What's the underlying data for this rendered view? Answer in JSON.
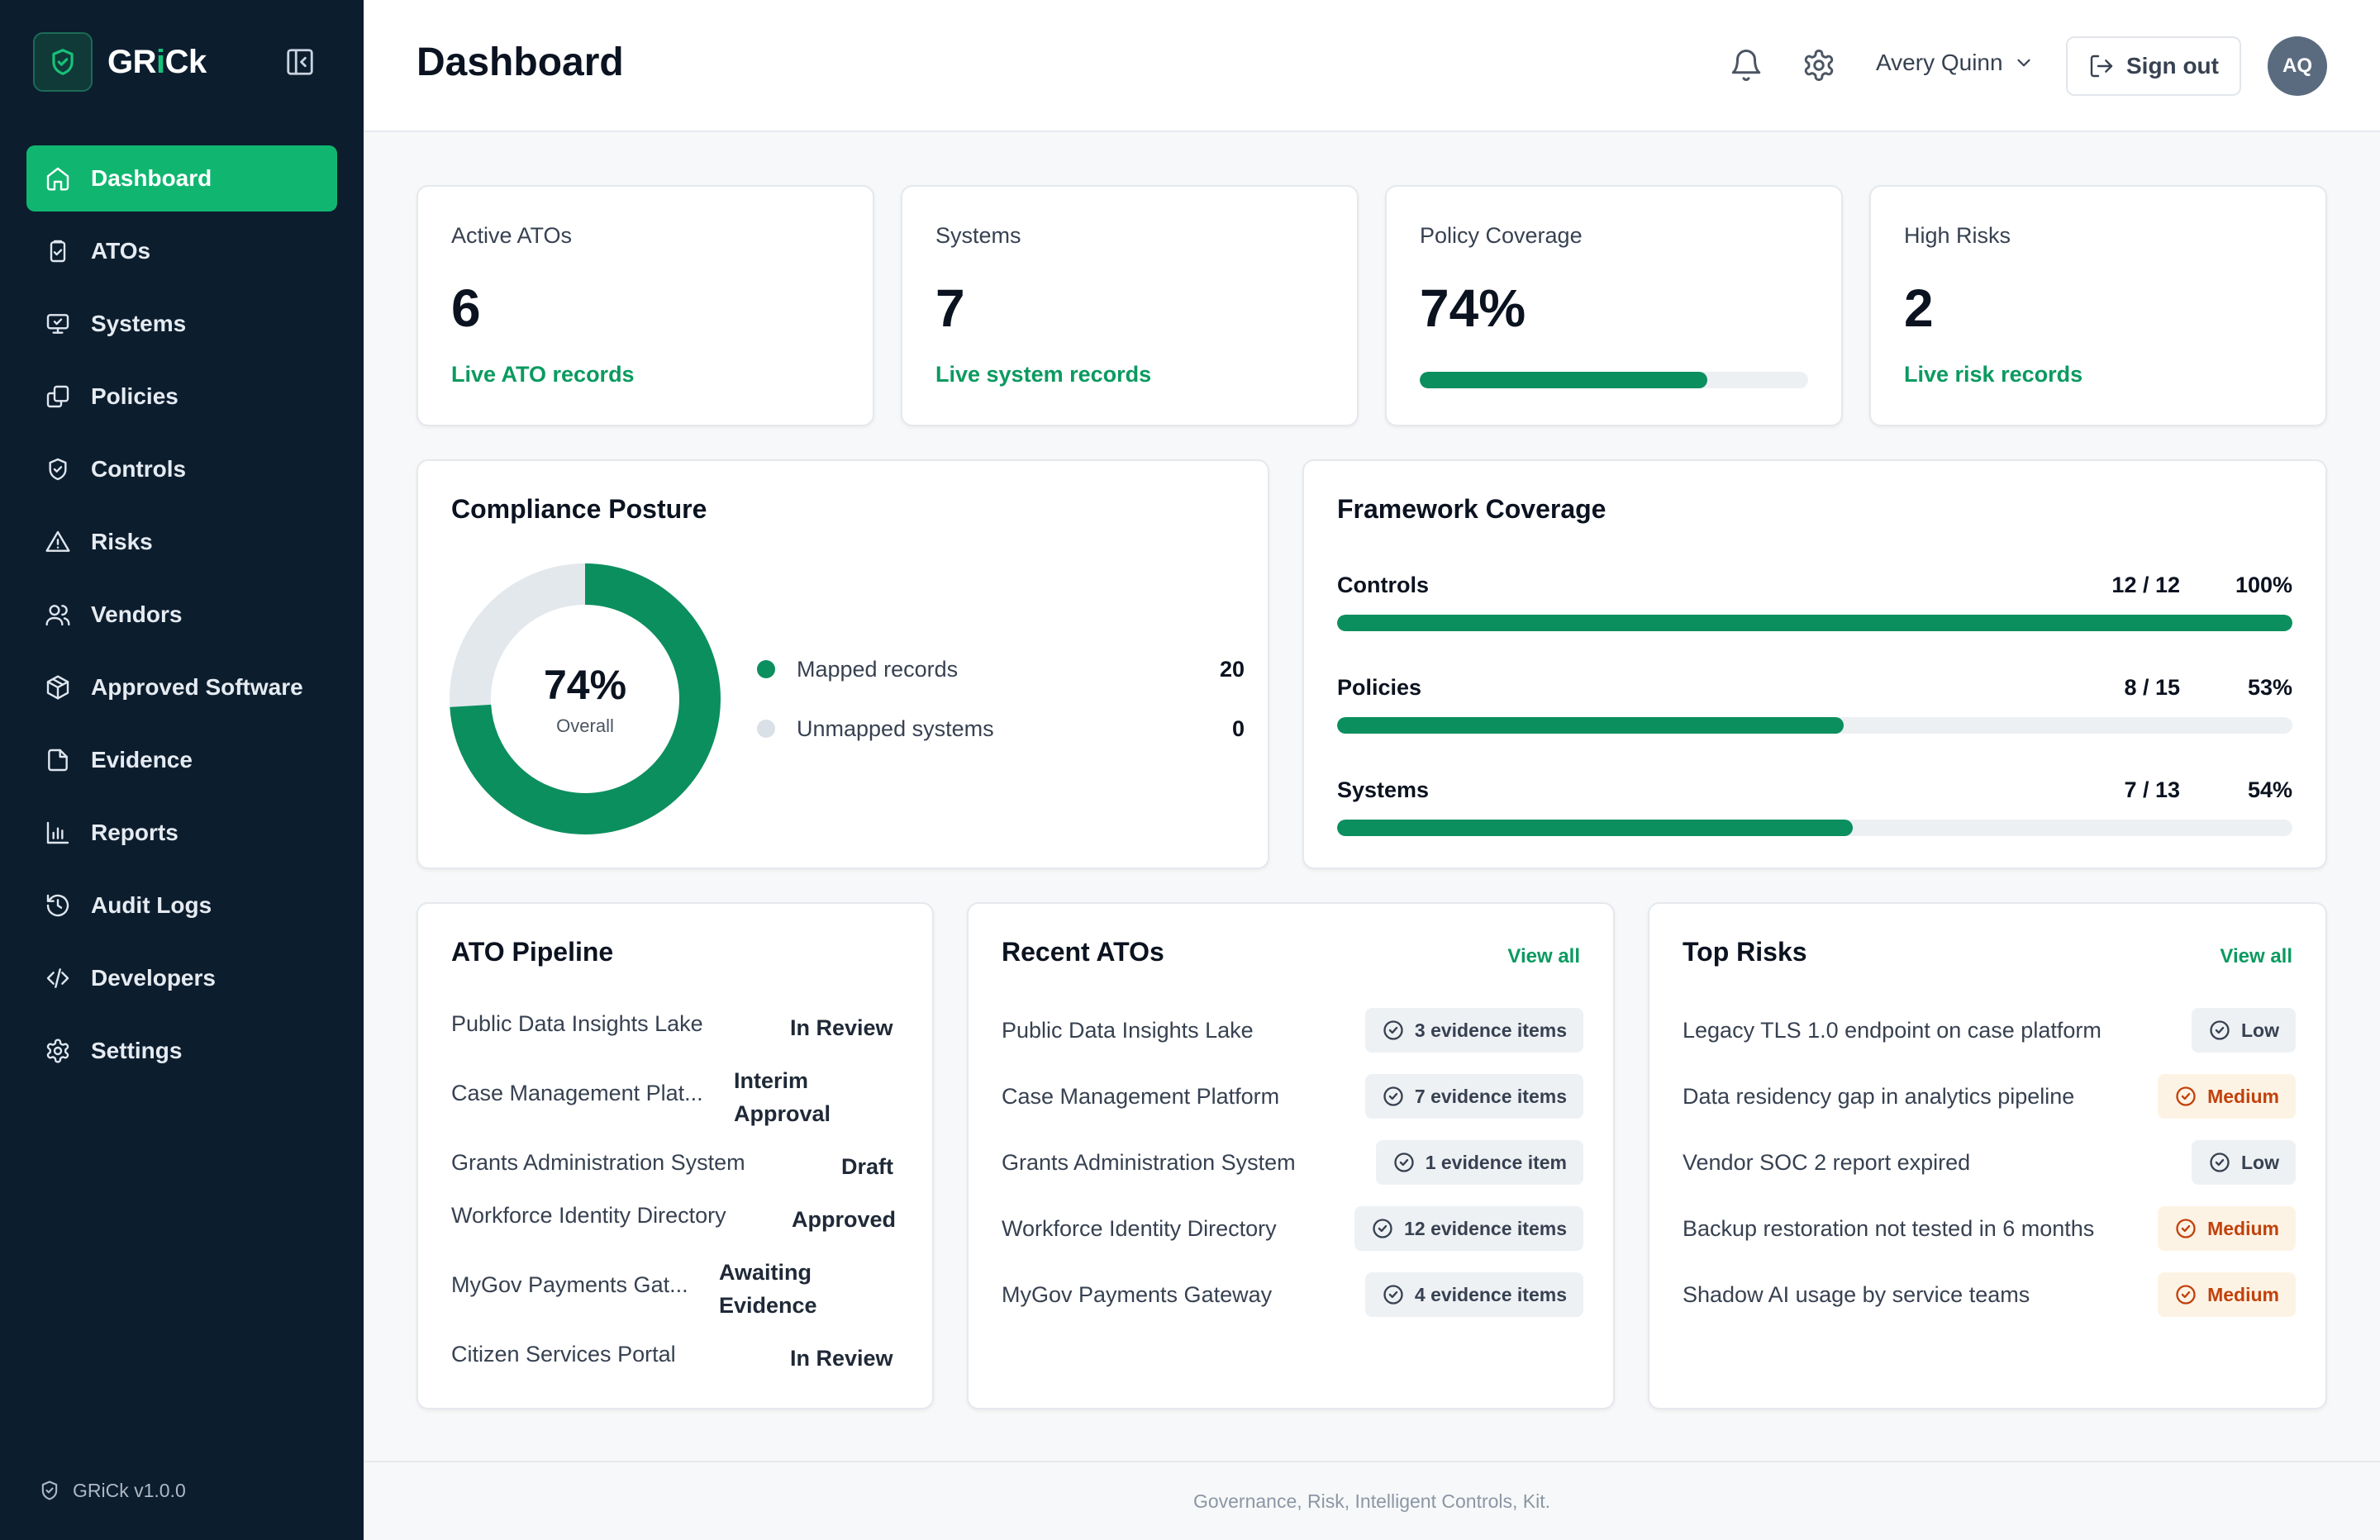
{
  "brand": {
    "name_prefix": "GR",
    "name_i": "i",
    "name_suffix": "Ck",
    "version": "GRiCk v1.0.0"
  },
  "nav": [
    {
      "label": "Dashboard",
      "icon": "home-icon",
      "active": true
    },
    {
      "label": "ATOs",
      "icon": "clipboard-check-icon"
    },
    {
      "label": "Systems",
      "icon": "monitor-icon"
    },
    {
      "label": "Policies",
      "icon": "copy-icon"
    },
    {
      "label": "Controls",
      "icon": "shield-check-icon"
    },
    {
      "label": "Risks",
      "icon": "warning-icon"
    },
    {
      "label": "Vendors",
      "icon": "users-icon"
    },
    {
      "label": "Approved Software",
      "icon": "package-icon"
    },
    {
      "label": "Evidence",
      "icon": "file-icon"
    },
    {
      "label": "Reports",
      "icon": "bar-chart-icon"
    },
    {
      "label": "Audit Logs",
      "icon": "history-icon"
    },
    {
      "label": "Developers",
      "icon": "code-icon"
    },
    {
      "label": "Settings",
      "icon": "gear-icon"
    }
  ],
  "header": {
    "title": "Dashboard",
    "user_name": "Avery Quinn",
    "sign_out": "Sign out",
    "avatar_initials": "AQ"
  },
  "stats": [
    {
      "label": "Active ATOs",
      "value": "6",
      "sub": "Live ATO records"
    },
    {
      "label": "Systems",
      "value": "7",
      "sub": "Live system records"
    },
    {
      "label": "Policy Coverage",
      "value": "74%",
      "progress": 0.74
    },
    {
      "label": "High Risks",
      "value": "2",
      "sub": "Live risk records"
    }
  ],
  "compliance": {
    "title": "Compliance Posture",
    "percent_label": "74%",
    "percent": 0.74,
    "center_sub": "Overall",
    "legend": [
      {
        "label": "Mapped records",
        "value": "20",
        "color": "#0b8f5e"
      },
      {
        "label": "Unmapped systems",
        "value": "0",
        "color": "#d9e0e7"
      }
    ]
  },
  "framework": {
    "title": "Framework Coverage",
    "rows": [
      {
        "label": "Controls",
        "ratio": "12 / 12",
        "pct": "100%",
        "fraction": 1.0
      },
      {
        "label": "Policies",
        "ratio": "8 / 15",
        "pct": "53%",
        "fraction": 0.53
      },
      {
        "label": "Systems",
        "ratio": "7 / 13",
        "pct": "54%",
        "fraction": 0.54
      }
    ]
  },
  "pipeline": {
    "title": "ATO Pipeline",
    "rows": [
      {
        "name": "Public Data Insights Lake",
        "status": "In Review"
      },
      {
        "name": "Case Management Plat...",
        "status": "Interim Approval"
      },
      {
        "name": "Grants Administration System",
        "status": "Draft"
      },
      {
        "name": "Workforce Identity Directory",
        "status": "Approved"
      },
      {
        "name": "MyGov Payments Gat...",
        "status": "Awaiting Evidence"
      },
      {
        "name": "Citizen Services Portal",
        "status": "In Review"
      }
    ]
  },
  "recent_atos": {
    "title": "Recent ATOs",
    "view_all": "View all",
    "rows": [
      {
        "name": "Public Data Insights Lake",
        "chip": "3 evidence items"
      },
      {
        "name": "Case Management Platform",
        "chip": "7 evidence items"
      },
      {
        "name": "Grants Administration System",
        "chip": "1 evidence item"
      },
      {
        "name": "Workforce Identity Directory",
        "chip": "12 evidence items"
      },
      {
        "name": "MyGov Payments Gateway",
        "chip": "4 evidence items"
      }
    ]
  },
  "top_risks": {
    "title": "Top Risks",
    "view_all": "View all",
    "rows": [
      {
        "name": "Legacy TLS 1.0 endpoint on case platform",
        "level": "Low"
      },
      {
        "name": "Data residency gap in analytics pipeline",
        "level": "Medium"
      },
      {
        "name": "Vendor SOC 2 report expired",
        "level": "Low"
      },
      {
        "name": "Backup restoration not tested in 6 months",
        "level": "Medium"
      },
      {
        "name": "Shadow AI usage by service teams",
        "level": "Medium"
      }
    ]
  },
  "footer": {
    "tagline": "Governance, Risk, Intelligent Controls, Kit."
  },
  "colors": {
    "accent": "#10b670",
    "accent_dark": "#0b8f5e",
    "sidebar": "#0c1d2e",
    "medium": "#c2410c"
  }
}
